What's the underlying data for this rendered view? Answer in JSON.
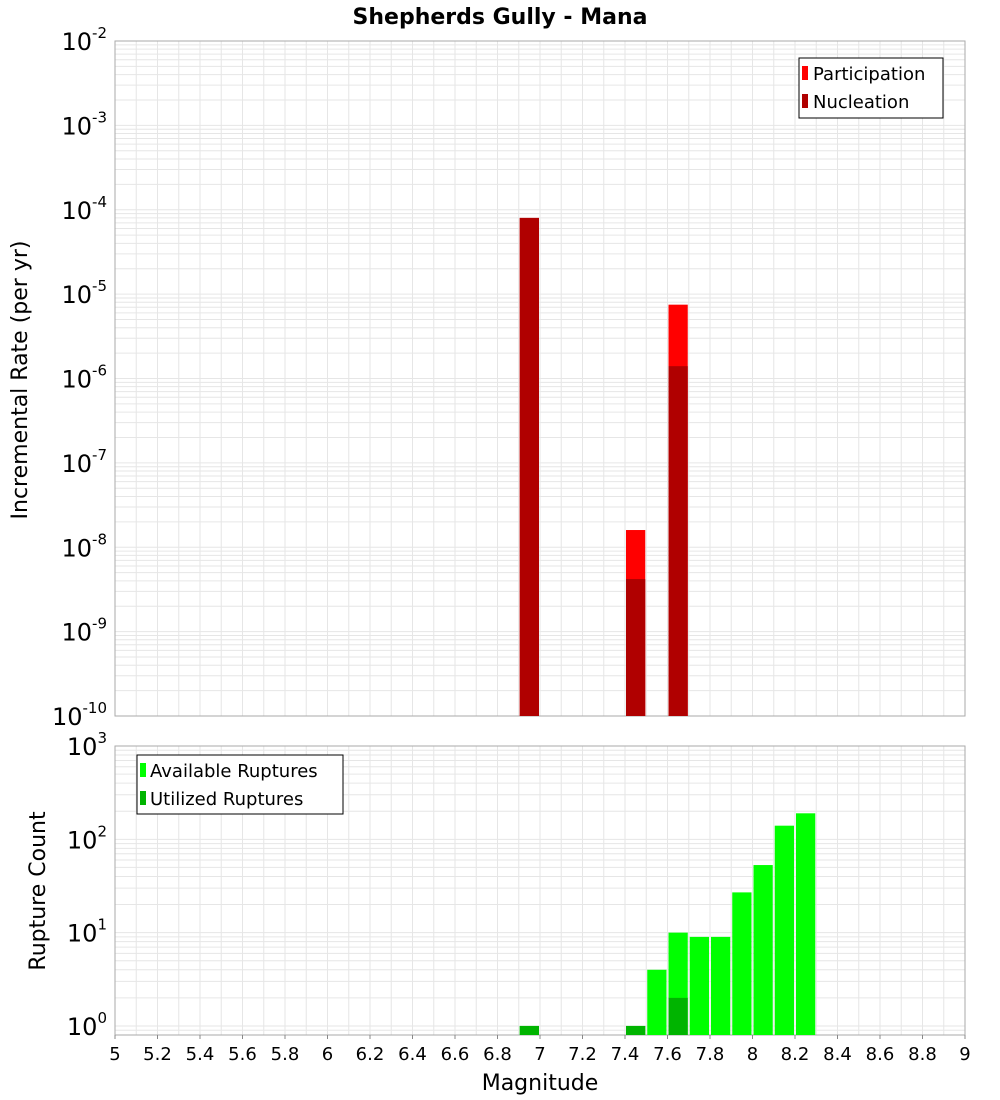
{
  "title": "Shepherds Gully - Mana",
  "colors": {
    "participation": "#ff0000",
    "nucleation": "#b00000",
    "available": "#00ff00",
    "utilized": "#00b400",
    "grid": "#e6e6e6",
    "frame": "#aaaaaa"
  },
  "chart_data": [
    {
      "type": "bar",
      "title": "Shepherds Gully - Mana",
      "xlabel": "Magnitude",
      "ylabel": "Incremental Rate (per yr)",
      "yscale": "log",
      "xlim": [
        5,
        9
      ],
      "ylim": [
        1e-10,
        0.01
      ],
      "y_ticks": [
        {
          "base": "10",
          "exp": "-10"
        },
        {
          "base": "10",
          "exp": "-9"
        },
        {
          "base": "10",
          "exp": "-8"
        },
        {
          "base": "10",
          "exp": "-7"
        },
        {
          "base": "10",
          "exp": "-6"
        },
        {
          "base": "10",
          "exp": "-5"
        },
        {
          "base": "10",
          "exp": "-4"
        },
        {
          "base": "10",
          "exp": "-3"
        },
        {
          "base": "10",
          "exp": "-2"
        }
      ],
      "legend": [
        "Participation",
        "Nucleation"
      ],
      "legend_position": "top-right",
      "series": [
        {
          "name": "Participation",
          "x": [
            6.95,
            7.45,
            7.65
          ],
          "values": [
            8e-05,
            1.6e-08,
            7.5e-06
          ]
        },
        {
          "name": "Nucleation",
          "x": [
            6.95,
            7.45,
            7.65
          ],
          "values": [
            8e-05,
            4.2e-09,
            1.4e-06
          ]
        }
      ]
    },
    {
      "type": "bar",
      "xlabel": "Magnitude",
      "ylabel": "Rupture Count",
      "yscale": "log",
      "xlim": [
        5,
        9
      ],
      "ylim": [
        0.8,
        1000
      ],
      "x_ticks": [
        "5",
        "5.2",
        "5.4",
        "5.6",
        "5.8",
        "6",
        "6.2",
        "6.4",
        "6.6",
        "6.8",
        "7",
        "7.2",
        "7.4",
        "7.6",
        "7.8",
        "8",
        "8.2",
        "8.4",
        "8.6",
        "8.8",
        "9"
      ],
      "y_ticks": [
        {
          "base": "10",
          "exp": "0"
        },
        {
          "base": "10",
          "exp": "1"
        },
        {
          "base": "10",
          "exp": "2"
        },
        {
          "base": "10",
          "exp": "3"
        }
      ],
      "legend": [
        "Available Ruptures",
        "Utilized Ruptures"
      ],
      "legend_position": "top-left",
      "series": [
        {
          "name": "Available Ruptures",
          "x": [
            6.95,
            7.45,
            7.55,
            7.65,
            7.75,
            7.85,
            7.95,
            8.05,
            8.15,
            8.25
          ],
          "values": [
            1,
            1,
            4,
            10,
            9,
            9,
            27,
            53,
            140,
            190
          ]
        },
        {
          "name": "Utilized Ruptures",
          "x": [
            6.95,
            7.45,
            7.65
          ],
          "values": [
            1,
            1,
            2
          ]
        }
      ]
    }
  ]
}
